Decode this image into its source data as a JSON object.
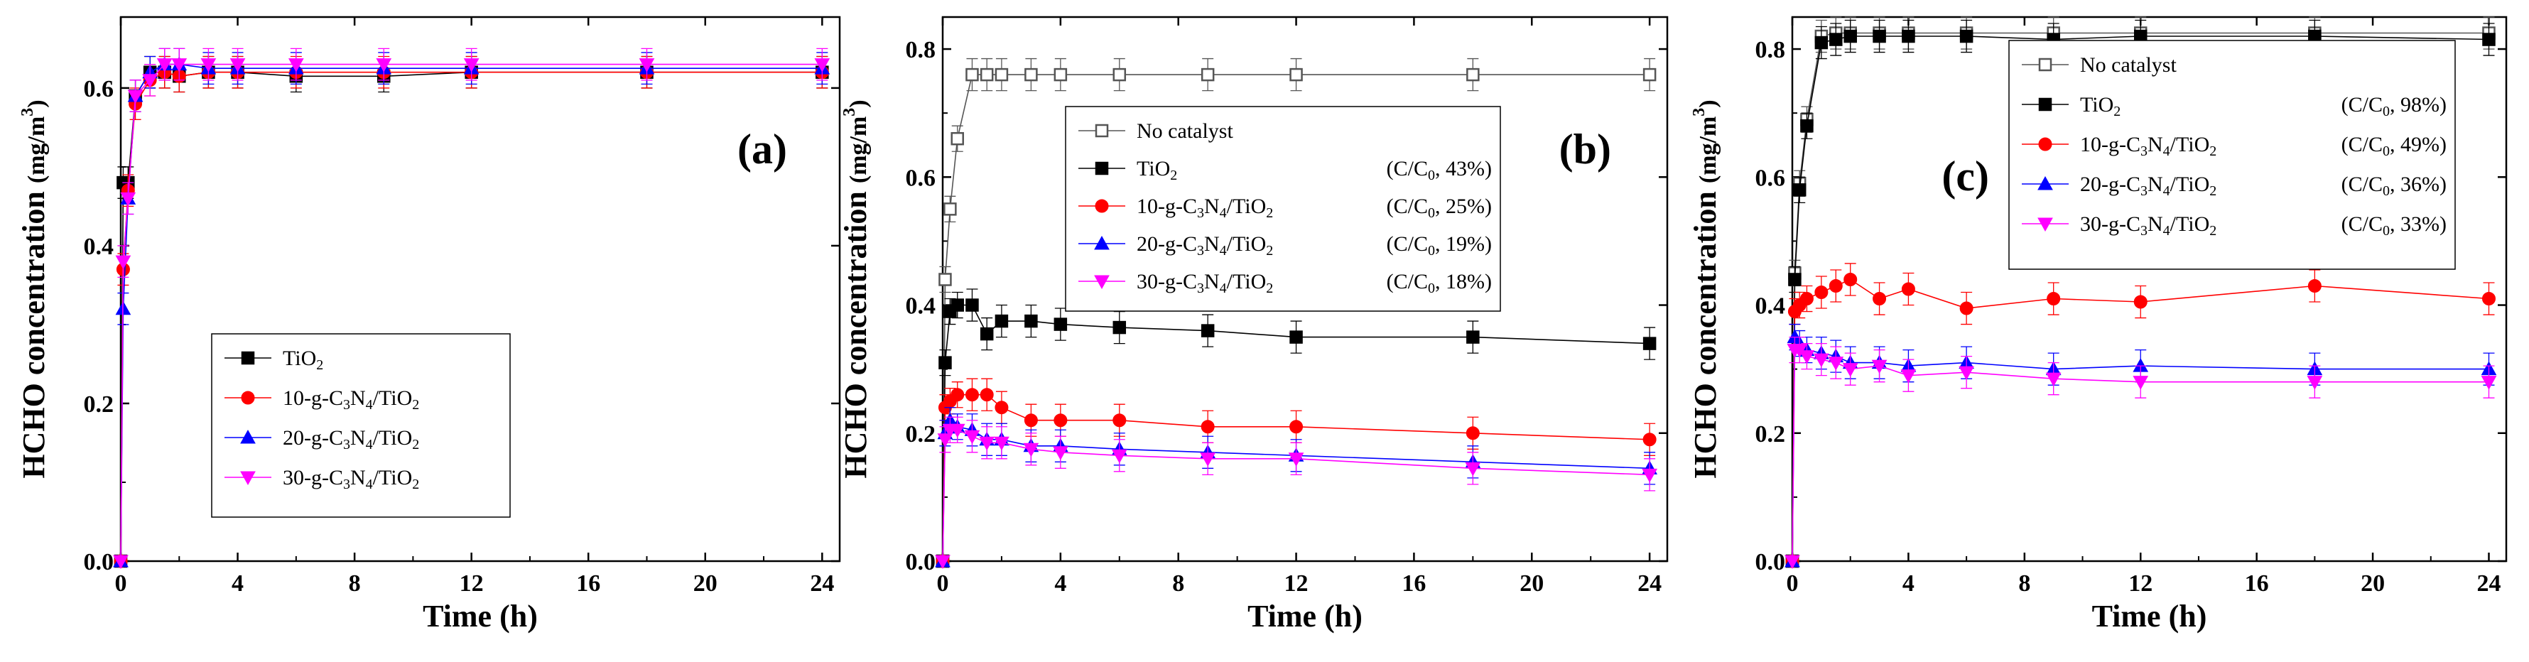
{
  "figure": {
    "colors": {
      "no_catalyst": "#555555",
      "tio2": "#000000",
      "c10": "#ff0000",
      "c20": "#0000ff",
      "c30": "#ff00ff"
    }
  },
  "chart_data": [
    {
      "type": "line",
      "panel_label": "(a)",
      "xlabel": "Time (h)",
      "ylabel": "HCHO concentration (mg/m3)",
      "ylabel_main": "HCHO concentration ",
      "ylabel_unit": "(mg/m",
      "ylabel_sup": "3",
      "ylabel_close": ")",
      "xlim": [
        0,
        24.6
      ],
      "ylim": [
        0,
        0.69
      ],
      "xticks": [
        0,
        4,
        8,
        12,
        16,
        20,
        24
      ],
      "xtick_labels": [
        "0",
        "4",
        "8",
        "12",
        "16",
        "20",
        "24"
      ],
      "yticks": [
        0,
        0.2,
        0.4,
        0.6
      ],
      "ytick_labels": [
        "0.0",
        "0.2",
        "0.4",
        "0.6"
      ],
      "legend_position": "center",
      "series": [
        {
          "name": "TiO2",
          "label_html": [
            "TiO",
            "2",
            ""
          ],
          "color": "#000000",
          "marker": "square",
          "x": [
            0,
            0.083,
            0.25,
            0.5,
            1,
            1.5,
            2,
            3,
            4,
            6,
            9,
            12,
            18,
            24
          ],
          "y": [
            0,
            0.48,
            0.48,
            0.59,
            0.62,
            0.62,
            0.615,
            0.62,
            0.62,
            0.615,
            0.615,
            0.62,
            0.62,
            0.62
          ],
          "err": [
            0,
            0.02,
            0.02,
            0.02,
            0.02,
            0.02,
            0.02,
            0.02,
            0.02,
            0.02,
            0.02,
            0.02,
            0.02,
            0.02
          ]
        },
        {
          "name": "10-g-C3N4/TiO2",
          "label_html": [
            "10-g-C",
            "3",
            "N",
            "4",
            "/TiO",
            "2"
          ],
          "color": "#ff0000",
          "marker": "circle",
          "x": [
            0,
            0.083,
            0.25,
            0.5,
            1,
            1.5,
            2,
            3,
            4,
            6,
            9,
            12,
            18,
            24
          ],
          "y": [
            0,
            0.37,
            0.47,
            0.58,
            0.61,
            0.62,
            0.615,
            0.62,
            0.62,
            0.62,
            0.62,
            0.62,
            0.62,
            0.62
          ],
          "err": [
            0,
            0.02,
            0.02,
            0.02,
            0.02,
            0.02,
            0.02,
            0.02,
            0.02,
            0.02,
            0.02,
            0.02,
            0.02,
            0.02
          ]
        },
        {
          "name": "20-g-C3N4/TiO2",
          "label_html": [
            "20-g-C",
            "3",
            "N",
            "4",
            "/TiO",
            "2"
          ],
          "color": "#0000ff",
          "marker": "triangle-up",
          "x": [
            0,
            0.083,
            0.25,
            0.5,
            1,
            1.5,
            2,
            3,
            4,
            6,
            9,
            12,
            18,
            24
          ],
          "y": [
            0,
            0.32,
            0.46,
            0.59,
            0.62,
            0.63,
            0.63,
            0.625,
            0.625,
            0.625,
            0.625,
            0.625,
            0.625,
            0.625
          ],
          "err": [
            0,
            0.02,
            0.02,
            0.02,
            0.02,
            0.02,
            0.02,
            0.02,
            0.02,
            0.02,
            0.02,
            0.02,
            0.02,
            0.02
          ]
        },
        {
          "name": "30-g-C3N4/TiO2",
          "label_html": [
            "30-g-C",
            "3",
            "N",
            "4",
            "/TiO",
            "2"
          ],
          "color": "#ff00ff",
          "marker": "triangle-down",
          "x": [
            0,
            0.083,
            0.25,
            0.5,
            1,
            1.5,
            2,
            3,
            4,
            6,
            9,
            12,
            18,
            24
          ],
          "y": [
            0,
            0.38,
            0.46,
            0.59,
            0.61,
            0.63,
            0.63,
            0.63,
            0.63,
            0.63,
            0.63,
            0.63,
            0.63,
            0.63
          ],
          "err": [
            0,
            0.02,
            0.02,
            0.02,
            0.02,
            0.02,
            0.02,
            0.02,
            0.02,
            0.02,
            0.02,
            0.02,
            0.02,
            0.02
          ]
        }
      ]
    },
    {
      "type": "line",
      "panel_label": "(b)",
      "xlabel": "Time (h)",
      "ylabel": "HCHO concentration (mg/m3)",
      "ylabel_main": "HCHO concentration ",
      "ylabel_unit": "(mg/m",
      "ylabel_sup": "3",
      "ylabel_close": ")",
      "xlim": [
        0,
        24.6
      ],
      "ylim": [
        0,
        0.85
      ],
      "xticks": [
        0,
        4,
        8,
        12,
        16,
        20,
        24
      ],
      "xtick_labels": [
        "0",
        "4",
        "8",
        "12",
        "16",
        "20",
        "24"
      ],
      "yticks": [
        0,
        0.2,
        0.4,
        0.6,
        0.8
      ],
      "ytick_labels": [
        "0.0",
        "0.2",
        "0.4",
        "0.6",
        "0.8"
      ],
      "legend_position": "center",
      "series": [
        {
          "name": "No catalyst",
          "label_html": [
            "No catalyst"
          ],
          "ratio": "",
          "color": "#555555",
          "marker": "square-open",
          "x": [
            0,
            0.083,
            0.25,
            0.5,
            1,
            1.5,
            2,
            3,
            4,
            6,
            9,
            12,
            18,
            24
          ],
          "y": [
            0,
            0.44,
            0.55,
            0.66,
            0.76,
            0.76,
            0.76,
            0.76,
            0.76,
            0.76,
            0.76,
            0.76,
            0.76,
            0.76
          ],
          "err": [
            0,
            0.02,
            0.02,
            0.02,
            0.025,
            0.025,
            0.025,
            0.025,
            0.025,
            0.025,
            0.025,
            0.025,
            0.025,
            0.025
          ]
        },
        {
          "name": "TiO2",
          "label_html": [
            "TiO",
            "2",
            ""
          ],
          "ratio": "(C/C0, 43%)",
          "color": "#000000",
          "marker": "square",
          "x": [
            0,
            0.083,
            0.25,
            0.5,
            1,
            1.5,
            2,
            3,
            4,
            6,
            9,
            12,
            18,
            24
          ],
          "y": [
            0,
            0.31,
            0.39,
            0.4,
            0.4,
            0.355,
            0.375,
            0.375,
            0.37,
            0.365,
            0.36,
            0.35,
            0.35,
            0.34
          ],
          "err": [
            0,
            0.02,
            0.02,
            0.02,
            0.025,
            0.025,
            0.025,
            0.025,
            0.025,
            0.025,
            0.025,
            0.025,
            0.025,
            0.025
          ]
        },
        {
          "name": "10-g-C3N4/TiO2",
          "label_html": [
            "10-g-C",
            "3",
            "N",
            "4",
            "/TiO",
            "2"
          ],
          "ratio": "(C/C0, 25%)",
          "color": "#ff0000",
          "marker": "circle",
          "x": [
            0,
            0.083,
            0.25,
            0.5,
            1,
            1.5,
            2,
            3,
            4,
            6,
            9,
            12,
            18,
            24
          ],
          "y": [
            0,
            0.24,
            0.25,
            0.26,
            0.26,
            0.26,
            0.24,
            0.22,
            0.22,
            0.22,
            0.21,
            0.21,
            0.2,
            0.19
          ],
          "err": [
            0,
            0.02,
            0.02,
            0.02,
            0.025,
            0.025,
            0.025,
            0.025,
            0.025,
            0.025,
            0.025,
            0.025,
            0.025,
            0.025
          ]
        },
        {
          "name": "20-g-C3N4/TiO2",
          "label_html": [
            "20-g-C",
            "3",
            "N",
            "4",
            "/TiO",
            "2"
          ],
          "ratio": "(C/C0, 19%)",
          "color": "#0000ff",
          "marker": "triangle-up",
          "x": [
            0,
            0.083,
            0.25,
            0.5,
            1,
            1.5,
            2,
            3,
            4,
            6,
            9,
            12,
            18,
            24
          ],
          "y": [
            0,
            0.2,
            0.22,
            0.21,
            0.205,
            0.19,
            0.19,
            0.18,
            0.18,
            0.175,
            0.17,
            0.165,
            0.155,
            0.145
          ],
          "err": [
            0,
            0.02,
            0.02,
            0.02,
            0.025,
            0.025,
            0.025,
            0.025,
            0.025,
            0.025,
            0.025,
            0.025,
            0.025,
            0.025
          ]
        },
        {
          "name": "30-g-C3N4/TiO2",
          "label_html": [
            "30-g-C",
            "3",
            "N",
            "4",
            "/TiO",
            "2"
          ],
          "ratio": "(C/C0, 18%)",
          "color": "#ff00ff",
          "marker": "triangle-down",
          "x": [
            0,
            0.083,
            0.25,
            0.5,
            1,
            1.5,
            2,
            3,
            4,
            6,
            9,
            12,
            18,
            24
          ],
          "y": [
            0,
            0.19,
            0.205,
            0.205,
            0.195,
            0.185,
            0.185,
            0.175,
            0.17,
            0.165,
            0.16,
            0.16,
            0.145,
            0.135
          ],
          "err": [
            0,
            0.02,
            0.02,
            0.02,
            0.025,
            0.025,
            0.025,
            0.025,
            0.025,
            0.025,
            0.025,
            0.025,
            0.025,
            0.025
          ]
        }
      ]
    },
    {
      "type": "line",
      "panel_label": "(c)",
      "xlabel": "Time (h)",
      "ylabel": "HCHO concentration (mg/m3)",
      "ylabel_main": "HCHO concentration ",
      "ylabel_unit": "(mg/m",
      "ylabel_sup": "3",
      "ylabel_close": ")",
      "xlim": [
        0,
        24.6
      ],
      "ylim": [
        0,
        0.85
      ],
      "xticks": [
        0,
        4,
        8,
        12,
        16,
        20,
        24
      ],
      "xtick_labels": [
        "0",
        "4",
        "8",
        "12",
        "16",
        "20",
        "24"
      ],
      "yticks": [
        0,
        0.2,
        0.4,
        0.6,
        0.8
      ],
      "ytick_labels": [
        "0.0",
        "0.2",
        "0.4",
        "0.6",
        "0.8"
      ],
      "legend_position": "top-right",
      "series": [
        {
          "name": "No catalyst",
          "label_html": [
            "No catalyst"
          ],
          "ratio": "",
          "color": "#555555",
          "marker": "square-open",
          "x": [
            0,
            0.083,
            0.25,
            0.5,
            1,
            1.5,
            2,
            3,
            4,
            6,
            9,
            12,
            18,
            24
          ],
          "y": [
            0,
            0.45,
            0.59,
            0.69,
            0.82,
            0.825,
            0.825,
            0.825,
            0.825,
            0.825,
            0.825,
            0.825,
            0.825,
            0.825
          ],
          "err": [
            0,
            0.02,
            0.02,
            0.02,
            0.025,
            0.025,
            0.025,
            0.025,
            0.025,
            0.025,
            0.025,
            0.025,
            0.025,
            0.025
          ]
        },
        {
          "name": "TiO2",
          "label_html": [
            "TiO",
            "2",
            ""
          ],
          "ratio": "(C/C0, 98%)",
          "color": "#000000",
          "marker": "square",
          "x": [
            0,
            0.083,
            0.25,
            0.5,
            1,
            1.5,
            2,
            3,
            4,
            6,
            9,
            12,
            18,
            24
          ],
          "y": [
            0,
            0.44,
            0.58,
            0.68,
            0.81,
            0.815,
            0.82,
            0.82,
            0.82,
            0.82,
            0.815,
            0.82,
            0.82,
            0.815
          ],
          "err": [
            0,
            0.02,
            0.02,
            0.02,
            0.025,
            0.025,
            0.025,
            0.025,
            0.025,
            0.025,
            0.025,
            0.025,
            0.025,
            0.025
          ]
        },
        {
          "name": "10-g-C3N4/TiO2",
          "label_html": [
            "10-g-C",
            "3",
            "N",
            "4",
            "/TiO",
            "2"
          ],
          "ratio": "(C/C0, 49%)",
          "color": "#ff0000",
          "marker": "circle",
          "x": [
            0,
            0.083,
            0.25,
            0.5,
            1,
            1.5,
            2,
            3,
            4,
            6,
            9,
            12,
            18,
            24
          ],
          "y": [
            0,
            0.39,
            0.4,
            0.41,
            0.42,
            0.43,
            0.44,
            0.41,
            0.425,
            0.395,
            0.41,
            0.405,
            0.43,
            0.41
          ],
          "err": [
            0,
            0.02,
            0.02,
            0.02,
            0.025,
            0.025,
            0.025,
            0.025,
            0.025,
            0.025,
            0.025,
            0.025,
            0.025,
            0.025
          ]
        },
        {
          "name": "20-g-C3N4/TiO2",
          "label_html": [
            "20-g-C",
            "3",
            "N",
            "4",
            "/TiO",
            "2"
          ],
          "ratio": "(C/C0, 36%)",
          "color": "#0000ff",
          "marker": "triangle-up",
          "x": [
            0,
            0.083,
            0.25,
            0.5,
            1,
            1.5,
            2,
            3,
            4,
            6,
            9,
            12,
            18,
            24
          ],
          "y": [
            0,
            0.35,
            0.34,
            0.33,
            0.325,
            0.32,
            0.31,
            0.31,
            0.305,
            0.31,
            0.3,
            0.305,
            0.3,
            0.3
          ],
          "err": [
            0,
            0.02,
            0.02,
            0.02,
            0.025,
            0.025,
            0.025,
            0.025,
            0.025,
            0.025,
            0.025,
            0.025,
            0.025,
            0.025
          ]
        },
        {
          "name": "30-g-C3N4/TiO2",
          "label_html": [
            "30-g-C",
            "3",
            "N",
            "4",
            "/TiO",
            "2"
          ],
          "ratio": "(C/C0, 33%)",
          "color": "#ff00ff",
          "marker": "triangle-down",
          "x": [
            0,
            0.083,
            0.25,
            0.5,
            1,
            1.5,
            2,
            3,
            4,
            6,
            9,
            12,
            18,
            24
          ],
          "y": [
            0,
            0.33,
            0.33,
            0.32,
            0.315,
            0.31,
            0.3,
            0.305,
            0.29,
            0.295,
            0.285,
            0.28,
            0.28,
            0.28
          ],
          "err": [
            0,
            0.02,
            0.02,
            0.02,
            0.025,
            0.025,
            0.025,
            0.025,
            0.025,
            0.025,
            0.025,
            0.025,
            0.025,
            0.025
          ]
        }
      ]
    }
  ]
}
